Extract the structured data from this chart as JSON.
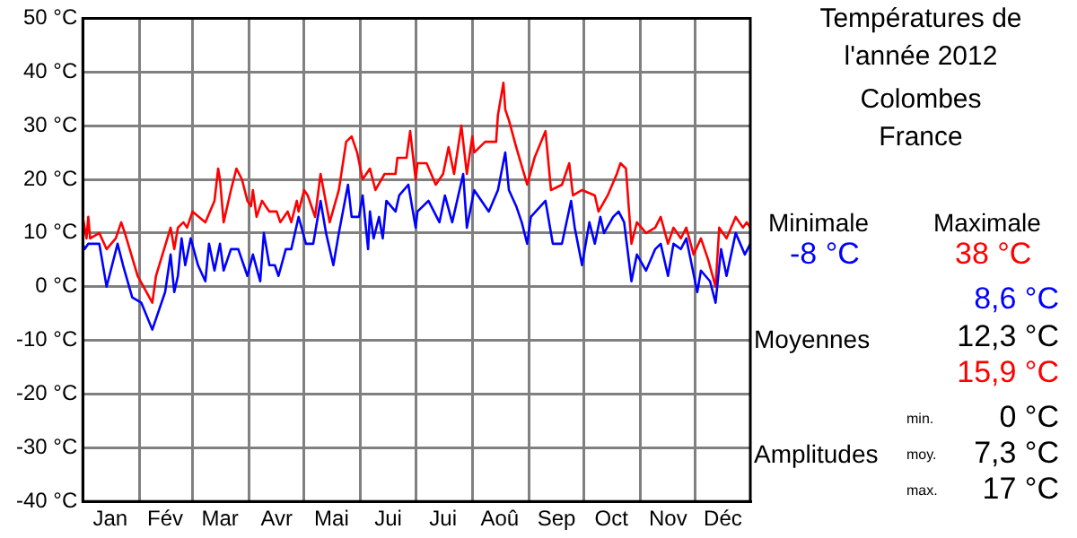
{
  "chart_data": {
    "type": "line",
    "title": "Températures de l'année 2012",
    "subtitle": "Colombes France",
    "xlim": [
      "--01-01",
      "--12-31"
    ],
    "xticks": [
      {
        "value": "--01-16",
        "label": "Jan"
      },
      {
        "value": "--02-01",
        "label": null
      },
      {
        "value": "--02-15",
        "label": "Fév"
      },
      {
        "value": "--03-01",
        "label": null
      },
      {
        "value": "--03-16",
        "label": "Mar"
      },
      {
        "value": "--04-01",
        "label": null
      },
      {
        "value": "--04-16",
        "label": "Avr"
      },
      {
        "value": "--05-01",
        "label": null
      },
      {
        "value": "--05-16",
        "label": "Mai"
      },
      {
        "value": "--06-01",
        "label": null
      },
      {
        "value": "--06-16",
        "label": "Jui"
      },
      {
        "value": "--07-01",
        "label": null
      },
      {
        "value": "--07-16",
        "label": "Jui"
      },
      {
        "value": "--08-01",
        "label": null
      },
      {
        "value": "--08-16",
        "label": "Aoû"
      },
      {
        "value": "--09-01",
        "label": null
      },
      {
        "value": "--09-16",
        "label": "Sep"
      },
      {
        "value": "--10-01",
        "label": null
      },
      {
        "value": "--10-16",
        "label": "Oct"
      },
      {
        "value": "--11-01",
        "label": null
      },
      {
        "value": "--11-16",
        "label": "Nov"
      },
      {
        "value": "--12-01",
        "label": null
      },
      {
        "value": "--12-16",
        "label": "Déc"
      }
    ],
    "ylim": [
      -40,
      50
    ],
    "yticks": [
      {
        "value": -40,
        "label": "-40 °C"
      },
      {
        "value": -30,
        "label": "-30 °C"
      },
      {
        "value": -20,
        "label": "-20 °C"
      },
      {
        "value": -10,
        "label": "-10 °C"
      },
      {
        "value": 0,
        "label": "0 °C"
      },
      {
        "value": 10,
        "label": "10 °C"
      },
      {
        "value": 20,
        "label": "20 °C"
      },
      {
        "value": 30,
        "label": "30 °C"
      },
      {
        "value": 40,
        "label": "40 °C"
      },
      {
        "value": 50,
        "label": "50 °C"
      }
    ],
    "grid": true,
    "legend": false,
    "marker": "none",
    "line_style": "solid",
    "series": [
      {
        "color": "#0000ff",
        "x": [
          "--01-01",
          "--01-02",
          "--01-04",
          "--01-05",
          "--01-10",
          "--01-14",
          "--01-20",
          "--01-23",
          "--01-28",
          "--02-02",
          "--02-08",
          "--02-15",
          "--02-18",
          "--02-20",
          "--02-22",
          "--02-24",
          "--02-26",
          "--02-29",
          "--03-04",
          "--03-08",
          "--03-10",
          "--03-13",
          "--03-16",
          "--03-18",
          "--03-22",
          "--03-26",
          "--03-31",
          "--04-03",
          "--04-07",
          "--04-09",
          "--04-12",
          "--04-15",
          "--04-17",
          "--04-21",
          "--04-24",
          "--04-28",
          "--05-02",
          "--05-06",
          "--05-10",
          "--05-13",
          "--05-17",
          "--05-20",
          "--05-25",
          "--05-27",
          "--05-31",
          "--06-02",
          "--06-05",
          "--06-06",
          "--06-08",
          "--06-11",
          "--06-13",
          "--06-15",
          "--06-20",
          "--06-22",
          "--06-27",
          "--07-01",
          "--07-02",
          "--07-08",
          "--07-14",
          "--07-17",
          "--07-21",
          "--07-27",
          "--07-29",
          "--08-02",
          "--08-10",
          "--08-15",
          "--08-19",
          "--08-21",
          "--08-25",
          "--08-28",
          "--08-31",
          "--09-02",
          "--09-10",
          "--09-14",
          "--09-19",
          "--09-24",
          "--09-26",
          "--09-30",
          "--10-04",
          "--10-07",
          "--10-10",
          "--10-12",
          "--10-17",
          "--10-20",
          "--10-23",
          "--10-27",
          "--10-30",
          "--11-04",
          "--11-09",
          "--11-12",
          "--11-16",
          "--11-19",
          "--11-23",
          "--11-26",
          "--12-02",
          "--12-04",
          "--12-09",
          "--12-12",
          "--12-15",
          "--12-18",
          "--12-23",
          "--12-28",
          "--12-31"
        ],
        "values": [
          8,
          7,
          8,
          8,
          8,
          0,
          8,
          4,
          -2,
          -3,
          -8,
          -1,
          6,
          -1,
          2,
          9,
          4,
          9,
          4,
          1,
          8,
          3,
          8,
          3,
          7,
          7,
          2,
          6,
          1,
          10,
          4,
          4,
          2,
          7,
          7,
          13,
          8,
          8,
          16,
          10,
          4,
          10,
          19,
          13,
          13,
          17,
          7,
          14,
          9,
          13,
          9,
          16,
          14,
          17,
          19,
          11,
          14,
          16,
          12,
          17,
          12,
          21,
          11,
          18,
          14,
          18,
          25,
          18,
          15,
          12,
          8,
          13,
          16,
          8,
          8,
          16,
          11,
          4,
          12,
          8,
          13,
          10,
          13,
          14,
          12,
          1,
          6,
          3,
          7,
          8,
          2,
          8,
          7,
          9,
          -1,
          3,
          1,
          -3,
          7,
          2,
          10,
          6,
          8
        ]
      },
      {
        "color": "#ff0000",
        "x": [
          "--01-01",
          "--01-03",
          "--01-04",
          "--01-05",
          "--01-10",
          "--01-14",
          "--01-19",
          "--01-22",
          "--01-24",
          "--01-31",
          "--02-08",
          "--02-10",
          "--02-18",
          "--02-20",
          "--02-22",
          "--02-25",
          "--02-27",
          "--03-01",
          "--03-08",
          "--03-13",
          "--03-15",
          "--03-16",
          "--03-18",
          "--03-22",
          "--03-25",
          "--03-28",
          "--03-31",
          "--04-02",
          "--04-03",
          "--04-05",
          "--04-08",
          "--04-12",
          "--04-16",
          "--04-18",
          "--04-22",
          "--04-24",
          "--04-27",
          "--04-28",
          "--05-01",
          "--05-03",
          "--05-07",
          "--05-10",
          "--05-15",
          "--05-20",
          "--05-24",
          "--05-27",
          "--05-30",
          "--06-02",
          "--06-06",
          "--06-09",
          "--06-14",
          "--06-20",
          "--06-21",
          "--06-26",
          "--06-28",
          "--07-01",
          "--07-02",
          "--07-07",
          "--07-12",
          "--07-16",
          "--07-19",
          "--07-22",
          "--07-26",
          "--07-29",
          "--08-01",
          "--08-02",
          "--08-08",
          "--08-14",
          "--08-15",
          "--08-18",
          "--08-19",
          "--08-21",
          "--08-25",
          "--08-31",
          "--09-04",
          "--09-10",
          "--09-13",
          "--09-19",
          "--09-23",
          "--09-25",
          "--09-30",
          "--10-07",
          "--10-09",
          "--10-14",
          "--10-19",
          "--10-21",
          "--10-24",
          "--10-27",
          "--10-30",
          "--11-04",
          "--11-09",
          "--11-12",
          "--11-16",
          "--11-19",
          "--11-23",
          "--11-26",
          "--11-30",
          "--12-04",
          "--12-08",
          "--12-12",
          "--12-14",
          "--12-18",
          "--12-23",
          "--12-27",
          "--12-29",
          "--12-31"
        ],
        "values": [
          13,
          9,
          13,
          9,
          10,
          7,
          9,
          12,
          10,
          2,
          -3,
          2,
          11,
          7,
          11,
          12,
          11,
          14,
          12,
          16,
          22,
          20,
          12,
          18,
          22,
          20,
          16,
          15,
          18,
          13,
          16,
          14,
          14,
          12,
          14,
          12,
          16,
          14,
          18,
          17,
          13,
          21,
          12,
          18,
          27,
          28,
          25,
          20,
          22,
          18,
          21,
          21,
          24,
          24,
          29,
          20,
          23,
          23,
          19,
          21,
          26,
          21,
          30,
          21,
          28,
          25,
          27,
          27,
          32,
          38,
          33,
          31,
          26,
          19,
          24,
          29,
          18,
          19,
          23,
          17,
          18,
          17,
          14,
          17,
          21,
          23,
          22,
          8,
          12,
          10,
          11,
          13,
          8,
          11,
          9,
          11,
          6,
          9,
          5,
          0,
          11,
          9,
          13,
          11,
          12,
          11
        ]
      }
    ],
    "annotations": [
      "Minimale",
      "-8 °C",
      "Maximale",
      "38 °C",
      "8,6 °C",
      "Moyennes",
      "12,3 °C",
      "15,9 °C",
      "Amplitudes",
      "min.",
      "0 °C",
      "moy.",
      "7,3 °C",
      "max.",
      "17 °C"
    ]
  }
}
